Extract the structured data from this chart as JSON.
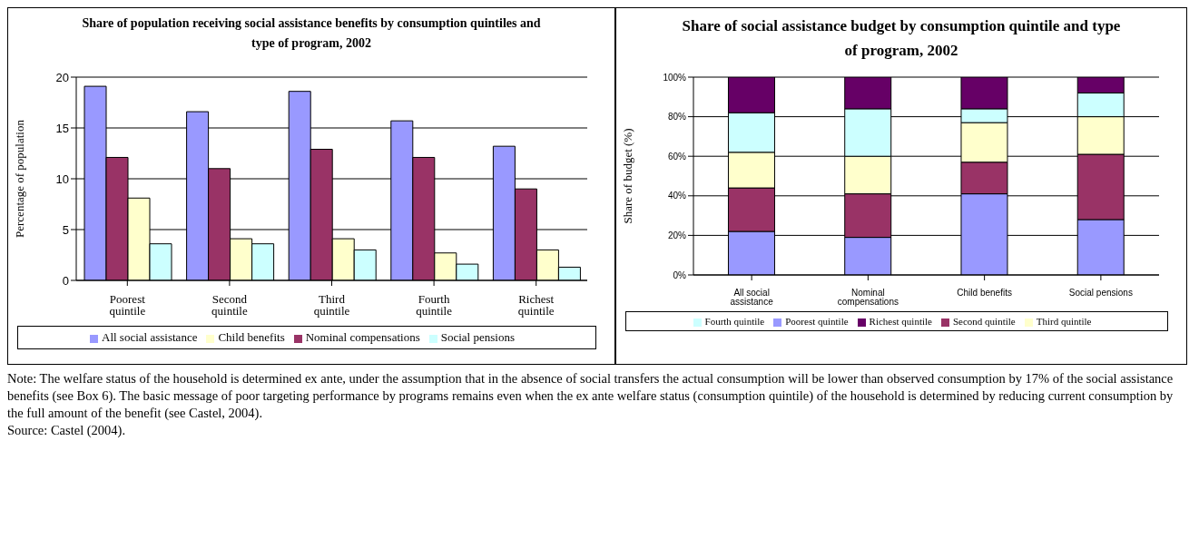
{
  "chart_data": [
    {
      "type": "bar",
      "title": "Share of population receiving social assistance benefits by consumption quintiles and type of program, 2002",
      "ylabel": "Percentage of population",
      "categories": [
        "Poorest quintile",
        "Second quintile",
        "Third quintile",
        "Fourth quintile",
        "Richest quintile"
      ],
      "series": [
        {
          "name": "All social assistance",
          "color": "#9999ff",
          "values": [
            19.1,
            16.6,
            18.6,
            15.7,
            13.2
          ]
        },
        {
          "name": "Nominal compensations",
          "color": "#993366",
          "values": [
            12.1,
            11,
            12.9,
            12.1,
            9
          ]
        },
        {
          "name": "Child benefits",
          "color": "#ffffcc",
          "values": [
            8.1,
            4.1,
            4.1,
            2.7,
            3
          ]
        },
        {
          "name": "Social pensions",
          "color": "#ccffff",
          "values": [
            3.6,
            3.6,
            3,
            1.6,
            1.3
          ]
        }
      ],
      "ylim": [
        0,
        20
      ],
      "yticks": [
        0,
        5,
        10,
        15,
        20
      ],
      "grid": "y",
      "legend": "bottom",
      "annotations": [
        "Note: The welfare status of the household is determined ex ante, under the assumption that in the absence of social transfers the actual consumption will be lower than observed consumption by  17% of the social assistance benefits (see Box 6). The basic message of poor targeting performance by programs remains even when the ex ante welfare status (consumption quintile) of the household is determined by reducing current consumption by the full amount of the benefit (see Castel, 2004).",
        "Source: Castel (2004)."
      ]
    },
    {
      "type": "bar",
      "stacked": true,
      "title": "Share of social assistance budget by consumption quintile and type of program, 2002",
      "ylabel": "Share of budget (%)",
      "categories": [
        "All social assistance",
        "Nominal compensations",
        "Child benefits",
        "Social pensions"
      ],
      "series": [
        {
          "name": "Poorest quintile",
          "color": "#9999ff",
          "values": [
            22,
            19,
            41,
            28
          ]
        },
        {
          "name": "Second quintile",
          "color": "#993366",
          "values": [
            22,
            22,
            16,
            33
          ]
        },
        {
          "name": "Third quintile",
          "color": "#ffffcc",
          "values": [
            18,
            19,
            20,
            19
          ]
        },
        {
          "name": "Fourth quintile",
          "color": "#ccffff",
          "values": [
            20,
            24,
            7,
            12
          ]
        },
        {
          "name": "Richest quintile",
          "color": "#660066",
          "values": [
            18,
            16,
            16,
            8
          ]
        }
      ],
      "ylim": [
        0,
        100
      ],
      "yticks": [
        {
          "value": 0,
          "label": "0%"
        },
        {
          "value": 20,
          "label": "20%"
        },
        {
          "value": 40,
          "label": "40%"
        },
        {
          "value": 60,
          "label": "60%"
        },
        {
          "value": 80,
          "label": "80%"
        },
        {
          "value": 100,
          "label": "100%"
        }
      ],
      "grid": "y",
      "legend": "bottom"
    }
  ]
}
